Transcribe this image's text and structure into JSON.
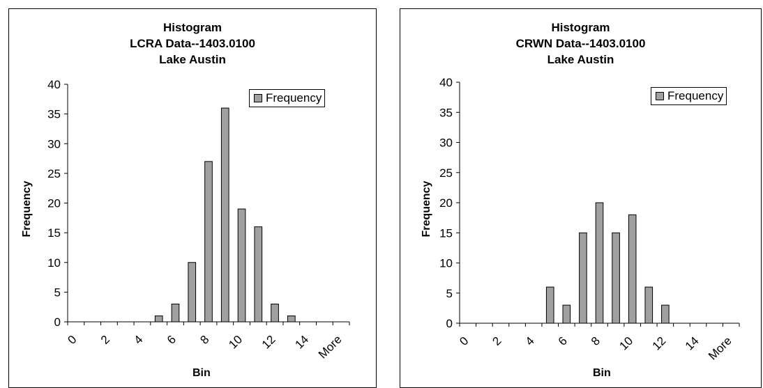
{
  "colors": {
    "bar_fill": "#a0a0a0",
    "bar_stroke": "#000000",
    "axis": "#000000",
    "background": "#ffffff"
  },
  "chart_data": [
    {
      "type": "bar",
      "title_lines": [
        "Histogram",
        "LCRA Data--1403.0100",
        "Lake Austin"
      ],
      "xlabel": "Bin",
      "ylabel": "Frequency",
      "categories": [
        "0",
        "1",
        "2",
        "3",
        "4",
        "5",
        "6",
        "7",
        "8",
        "9",
        "10",
        "11",
        "12",
        "13",
        "14",
        "15",
        "More"
      ],
      "x_tick_labels": [
        "0",
        "2",
        "4",
        "6",
        "8",
        "10",
        "12",
        "14",
        "More"
      ],
      "y_ticks": [
        "0",
        "5",
        "10",
        "15",
        "20",
        "25",
        "30",
        "35",
        "40"
      ],
      "ylim": [
        0,
        40
      ],
      "grid": false,
      "legend": {
        "position": "top-right",
        "entries": [
          "Frequency"
        ]
      },
      "series": [
        {
          "name": "Frequency",
          "values": [
            0,
            0,
            0,
            0,
            0,
            1,
            3,
            10,
            27,
            36,
            19,
            16,
            3,
            1,
            0,
            0,
            0
          ]
        }
      ]
    },
    {
      "type": "bar",
      "title_lines": [
        "Histogram",
        "CRWN Data--1403.0100",
        "Lake Austin"
      ],
      "xlabel": "Bin",
      "ylabel": "Frequency",
      "categories": [
        "0",
        "1",
        "2",
        "3",
        "4",
        "5",
        "6",
        "7",
        "8",
        "9",
        "10",
        "11",
        "12",
        "13",
        "14",
        "15",
        "More"
      ],
      "x_tick_labels": [
        "0",
        "2",
        "4",
        "6",
        "8",
        "10",
        "12",
        "14",
        "More"
      ],
      "y_ticks": [
        "0",
        "5",
        "10",
        "15",
        "20",
        "25",
        "30",
        "35",
        "40"
      ],
      "ylim": [
        0,
        40
      ],
      "grid": false,
      "legend": {
        "position": "top-right",
        "entries": [
          "Frequency"
        ]
      },
      "series": [
        {
          "name": "Frequency",
          "values": [
            0,
            0,
            0,
            0,
            0,
            6,
            3,
            15,
            20,
            15,
            18,
            6,
            3,
            0,
            0,
            0,
            0
          ]
        }
      ]
    }
  ]
}
